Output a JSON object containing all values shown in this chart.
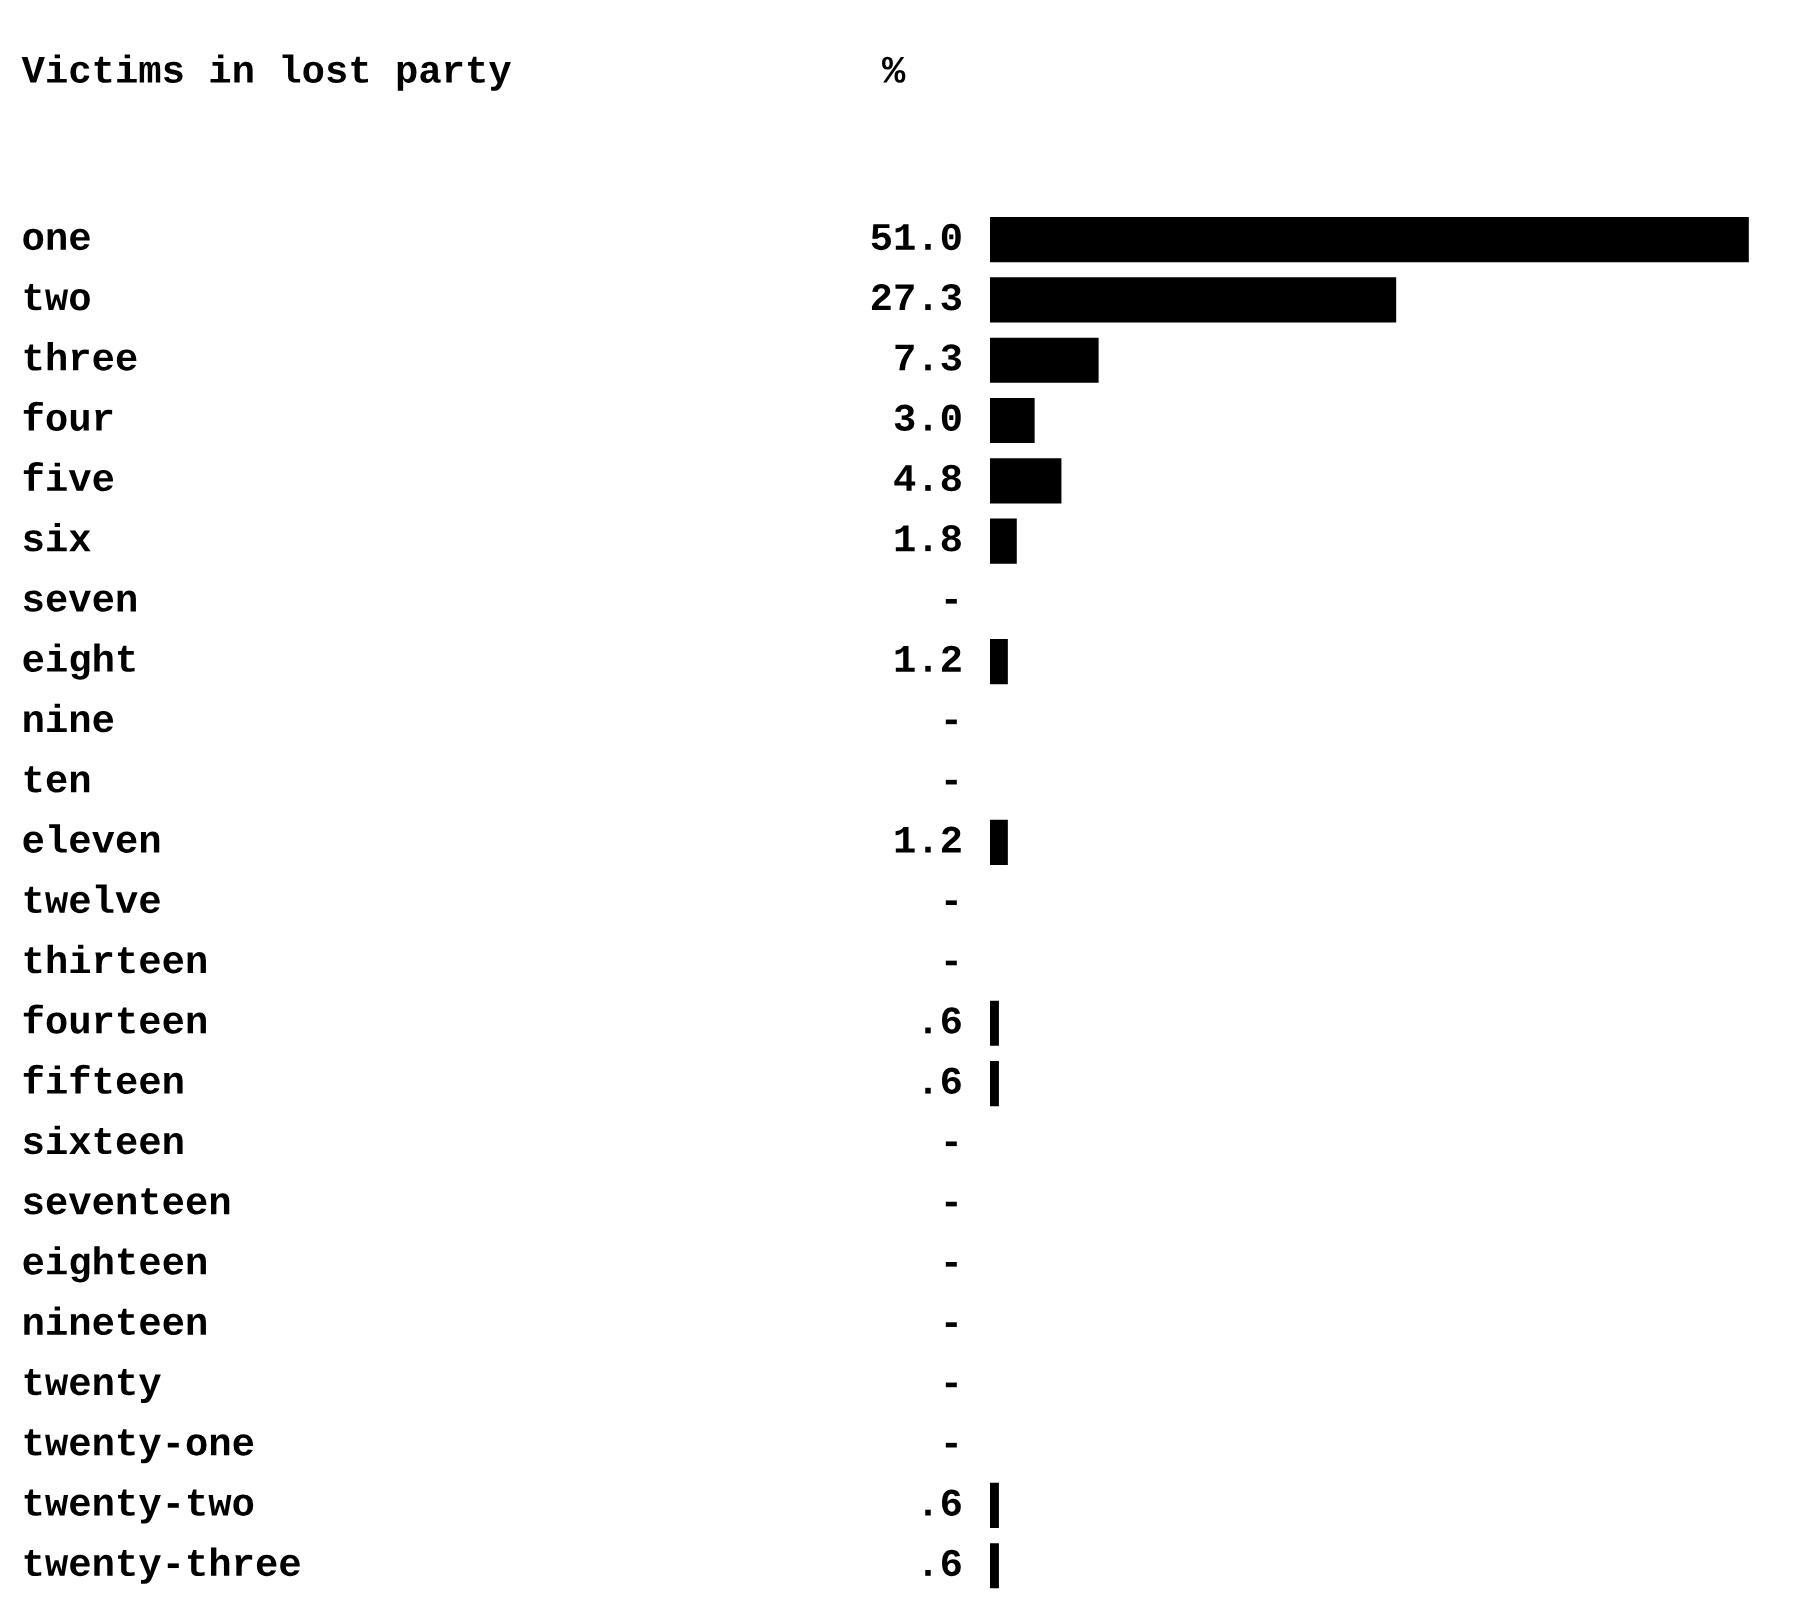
{
  "chart_data": {
    "type": "bar",
    "orientation": "horizontal",
    "ylabel": "Victims in lost party",
    "xlabel": "%",
    "categories": [
      "one",
      "two",
      "three",
      "four",
      "five",
      "six",
      "seven",
      "eight",
      "nine",
      "ten",
      "eleven",
      "twelve",
      "thirteen",
      "fourteen",
      "fifteen",
      "sixteen",
      "seventeen",
      "eighteen",
      "nineteen",
      "twenty",
      "twenty-one",
      "twenty-two",
      "twenty-three"
    ],
    "values": [
      51.0,
      27.3,
      7.3,
      3.0,
      4.8,
      1.8,
      null,
      1.2,
      null,
      null,
      1.2,
      null,
      null,
      0.6,
      0.6,
      null,
      null,
      null,
      null,
      null,
      null,
      0.6,
      0.6
    ],
    "value_labels": [
      "51.0",
      "27.3",
      "7.3",
      "3.0",
      "4.8",
      "1.8",
      "-",
      "1.2",
      "-",
      "-",
      "1.2",
      "-",
      "-",
      ".6",
      ".6",
      "-",
      "-",
      "-",
      "-",
      "-",
      "-",
      ".6",
      ".6"
    ],
    "color": "#000000"
  }
}
